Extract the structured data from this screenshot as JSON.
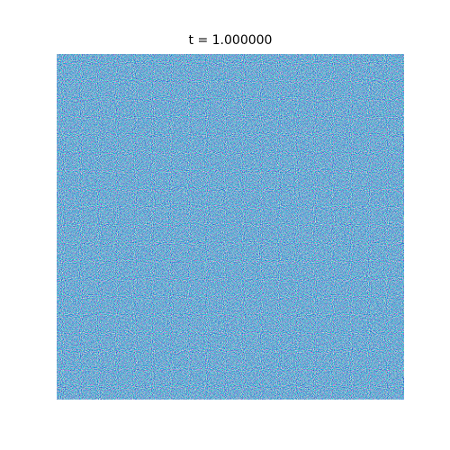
{
  "chart_data": {
    "type": "image",
    "title": "t = 1.000000",
    "colormap": [
      "#08519c",
      "#2171b5",
      "#4292c6",
      "#6baed6",
      "#9ecae1",
      "#c6dbef",
      "#f7fbff"
    ]
  }
}
